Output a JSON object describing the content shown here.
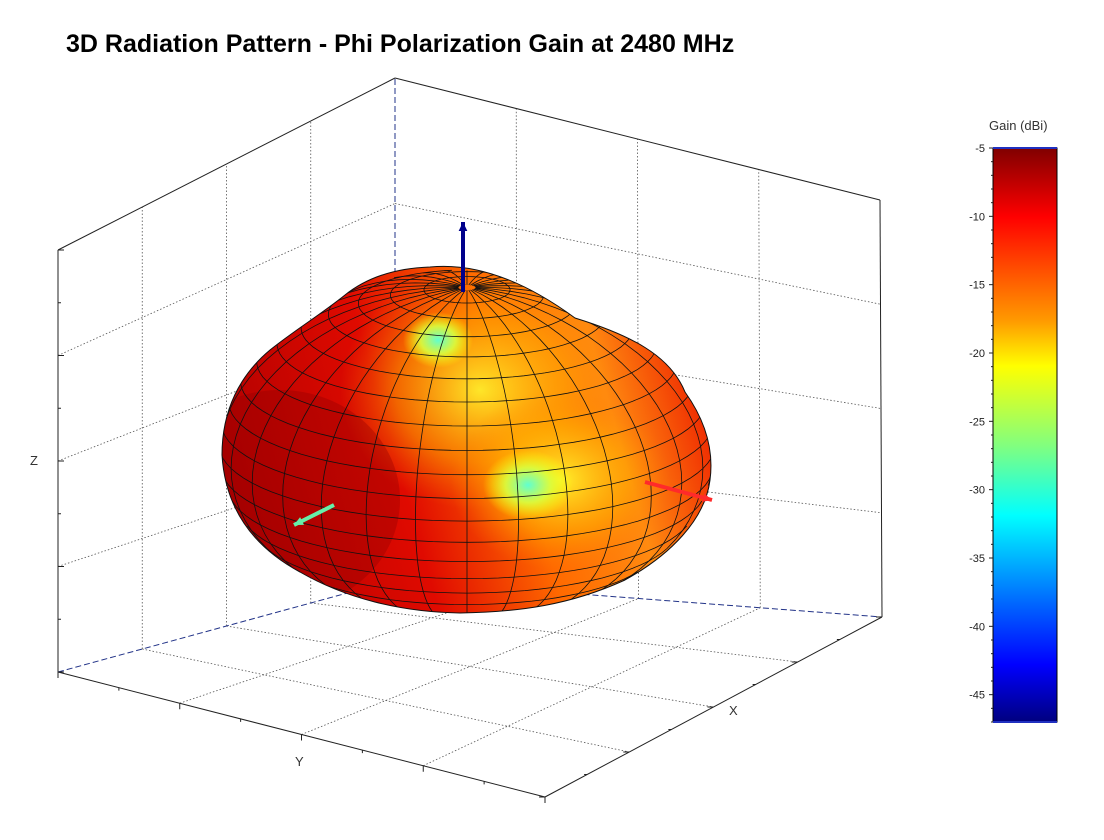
{
  "chart_data": {
    "type": "surface",
    "title": "3D Radiation Pattern - Phi Polarization Gain at 2480 MHz",
    "xlabel": "X",
    "ylabel": "Y",
    "zlabel": "Z",
    "grid": true,
    "colorbar": {
      "label": "Gain (dBi)",
      "range": [
        -47,
        -5
      ],
      "ticks": [
        -5,
        -10,
        -15,
        -20,
        -25,
        -30,
        -35,
        -40,
        -45
      ],
      "tick_labels": [
        "-5",
        "-10",
        "-15",
        "-20",
        "-25",
        "-30",
        "-35",
        "-40",
        "-45"
      ],
      "colormap": "jet",
      "placement": "right"
    },
    "axis_arrows": [
      {
        "axis": "z",
        "color": "#00008b"
      },
      {
        "axis": "y",
        "color": "#66f0a8"
      },
      {
        "axis": "x",
        "color": "#ff2a2a"
      }
    ]
  }
}
